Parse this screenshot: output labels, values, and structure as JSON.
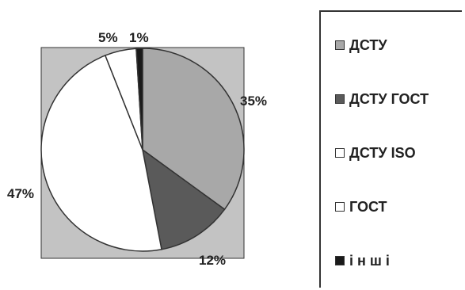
{
  "chart_data": {
    "type": "pie",
    "categories": [
      "ДСТУ",
      "ДСТУ ГОСТ",
      "ДСТУ ISO",
      "ГОСТ",
      "і н ш і"
    ],
    "values": [
      35,
      12,
      47,
      5,
      1
    ],
    "data_labels": [
      "35%",
      "12%",
      "47%",
      "5%",
      "1%"
    ],
    "colors": [
      "#a8a8a8",
      "#5a5a5a",
      "#ffffff",
      "#ffffff",
      "#1a1a1a"
    ],
    "plot_background": "#c3c3c3",
    "legend": {
      "placement": "right",
      "entries": [
        "ДСТУ",
        "ДСТУ ГОСТ",
        "ДСТУ ISO",
        "ГОСТ",
        "і н ш і"
      ]
    }
  }
}
